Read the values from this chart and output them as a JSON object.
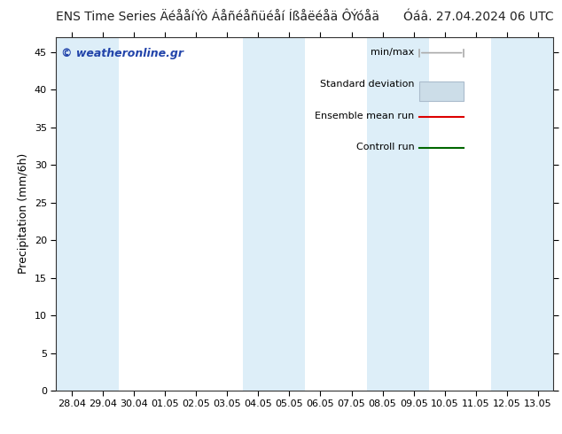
{
  "title_left": "ENS Time Series ÄéååíÝò Áåñéåñüéåí Íßåëéåä ÔÝóåä",
  "title_right": "Óáâ. 27.04.2024 06 UTC",
  "ylabel": "Precipitation (mm/6h)",
  "ylim": [
    0,
    47
  ],
  "yticks": [
    0,
    5,
    10,
    15,
    20,
    25,
    30,
    35,
    40,
    45
  ],
  "xlabels": [
    "28.04",
    "29.04",
    "30.04",
    "01.05",
    "02.05",
    "03.05",
    "04.05",
    "05.05",
    "06.05",
    "07.05",
    "08.05",
    "09.05",
    "10.05",
    "11.05",
    "12.05",
    "13.05"
  ],
  "n_cols": 16,
  "shaded_indices": [
    0,
    1,
    6,
    7,
    10,
    11,
    14,
    15
  ],
  "shade_color": "#ddeef8",
  "plot_bg_color": "#ffffff",
  "fig_bg_color": "#ffffff",
  "legend_labels": [
    "min/max",
    "Standard deviation",
    "Ensemble mean run",
    "Controll run"
  ],
  "minmax_color": "#aaaaaa",
  "std_fill_color": "#ccdde8",
  "std_edge_color": "#aabbcc",
  "mean_color": "#dd0000",
  "ctrl_color": "#006600",
  "watermark": "© weatheronline.gr",
  "watermark_color": "#2244aa",
  "title_fontsize": 10,
  "ylabel_fontsize": 9,
  "tick_fontsize": 8,
  "legend_fontsize": 8
}
